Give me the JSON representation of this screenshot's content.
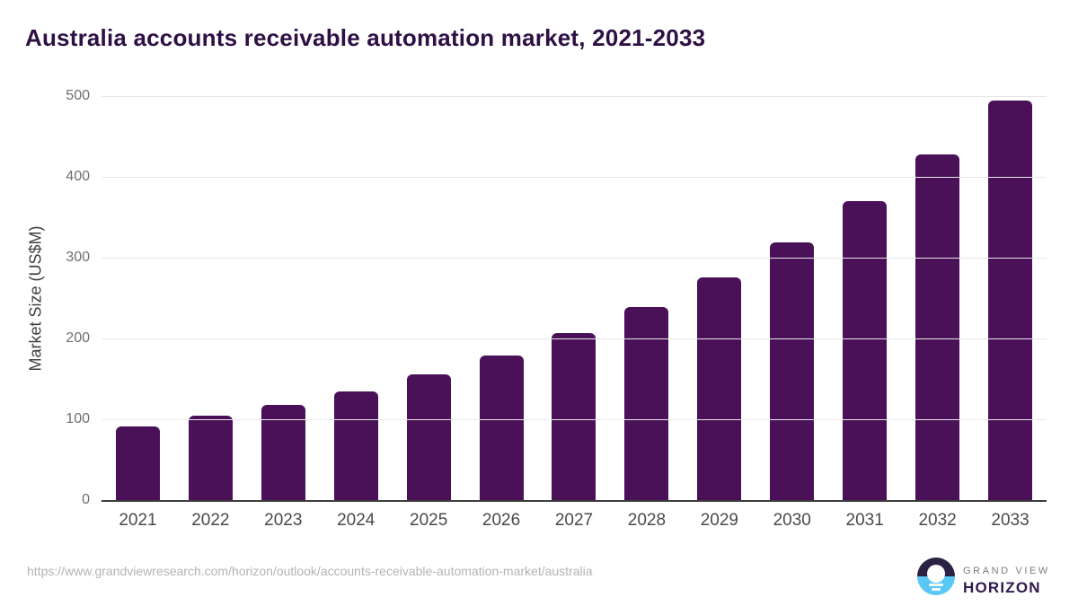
{
  "page": {
    "title": "Australia accounts receivable automation market, 2021-2033"
  },
  "chart_data": {
    "type": "bar",
    "title": "Australia accounts receivable automation market, 2021-2033",
    "categories": [
      "2021",
      "2022",
      "2023",
      "2024",
      "2025",
      "2026",
      "2027",
      "2028",
      "2029",
      "2030",
      "2031",
      "2032",
      "2033"
    ],
    "values": [
      91,
      104,
      118,
      135,
      156,
      179,
      207,
      239,
      276,
      319,
      370,
      428,
      495
    ],
    "xlabel": "",
    "ylabel": "Market Size (US$M)",
    "unit": "US$M",
    "ylim": [
      0,
      500
    ],
    "yticks": [
      0,
      100,
      200,
      300,
      400,
      500
    ],
    "grid": true,
    "legend_position": "none",
    "bar_color": "#4a1159"
  },
  "colors": {
    "title_text": "#2e1045",
    "axis_line": "#3d3d3d",
    "gridline": "#e7e7e7",
    "y_tick_text": "#6f6f6f",
    "x_tick_text": "#4a4a4a",
    "url_text": "#b3b3b3",
    "logo_circle_top": "#2b2145",
    "logo_circle_bottom": "#5ac8f5",
    "brand_top_text": "#7d7d7d",
    "brand_bottom_text": "#2e1a4d"
  },
  "footer": {
    "source_url": "https://www.grandviewresearch.com/horizon/outlook/accounts-receivable-automation-market/australia",
    "logo": {
      "brand_top": "GRAND VIEW",
      "brand_bottom": "HORIZON"
    }
  }
}
